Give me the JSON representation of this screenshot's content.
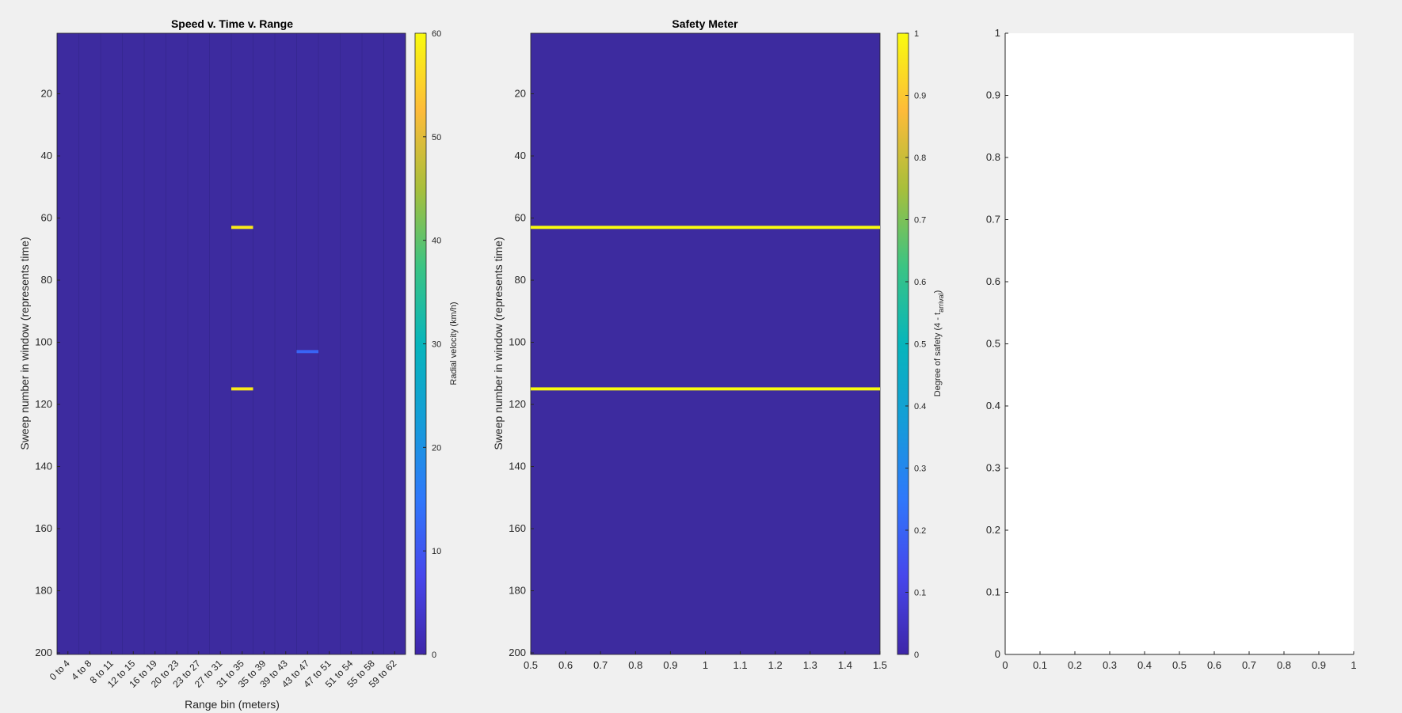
{
  "figure_background": "#f0f0f0",
  "heatmap_colors": {
    "background": "#3d2b9f",
    "zero": "#3e26a8"
  },
  "chart_data": [
    {
      "type": "heatmap",
      "title": "Speed v. Time v. Range",
      "xlabel": "Range bin (meters)",
      "ylabel": "Sweep number in window (represents time)",
      "x_tick_labels": [
        "0 to 4",
        "4 to 8",
        "8 to 11",
        "12 to 15",
        "16 to 19",
        "20 to 23",
        "23 to 27",
        "27 to 31",
        "31 to 35",
        "35 to 39",
        "39 to 43",
        "43 to 47",
        "47 to 51",
        "51 to 54",
        "55 to 58",
        "59 to 62"
      ],
      "y_ticks": [
        20,
        40,
        60,
        80,
        100,
        120,
        140,
        160,
        180,
        200
      ],
      "ylim": [
        0.5,
        200.5
      ],
      "y_reversed": true,
      "colormap": "parula",
      "colorbar": {
        "label": "Radial velocity (km/h)",
        "clim": [
          0,
          60
        ],
        "ticks": [
          0,
          10,
          20,
          30,
          40,
          50,
          60
        ]
      },
      "grid": true,
      "default_value": 0,
      "cells": [
        {
          "bin": "31 to 35",
          "sweep": 63,
          "value": 58
        },
        {
          "bin": "31 to 35",
          "sweep": 115,
          "value": 58
        },
        {
          "bin": "43 to 47",
          "sweep": 103,
          "value": 12
        }
      ]
    },
    {
      "type": "heatmap",
      "title": "Safety Meter",
      "xlabel": "",
      "ylabel": "Sweep number in window  (represents time)",
      "x_ticks": [
        "0.5",
        "0.6",
        "0.7",
        "0.8",
        "0.9",
        "1",
        "1.1",
        "1.2",
        "1.3",
        "1.4",
        "1.5"
      ],
      "xlim": [
        0.5,
        1.5
      ],
      "y_ticks": [
        20,
        40,
        60,
        80,
        100,
        120,
        140,
        160,
        180,
        200
      ],
      "ylim": [
        0.5,
        200.5
      ],
      "y_reversed": true,
      "colormap": "parula",
      "colorbar": {
        "label_main": "Degree of safety (4 - t",
        "label_sub": "arrival",
        "label_end": ")",
        "clim": [
          0,
          1
        ],
        "ticks": [
          "0",
          "0.1",
          "0.2",
          "0.3",
          "0.4",
          "0.5",
          "0.6",
          "0.7",
          "0.8",
          "0.9",
          "1"
        ]
      },
      "default_value": 0,
      "rows": [
        {
          "sweep": 63,
          "value": 1
        },
        {
          "sweep": 115,
          "value": 1
        }
      ]
    },
    {
      "type": "line",
      "title": "",
      "x_ticks": [
        "0",
        "0.1",
        "0.2",
        "0.3",
        "0.4",
        "0.5",
        "0.6",
        "0.7",
        "0.8",
        "0.9",
        "1"
      ],
      "y_ticks": [
        "0",
        "0.1",
        "0.2",
        "0.3",
        "0.4",
        "0.5",
        "0.6",
        "0.7",
        "0.8",
        "0.9",
        "1"
      ],
      "xlim": [
        0,
        1
      ],
      "ylim": [
        0,
        1
      ],
      "series": []
    }
  ]
}
